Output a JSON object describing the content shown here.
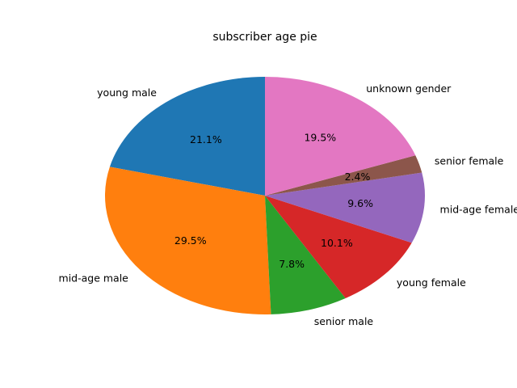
{
  "chart_data": {
    "type": "pie",
    "title": "subscriber age pie",
    "categories": [
      "young male",
      "mid-age male",
      "senior male",
      "young female",
      "mid-age female",
      "senior female",
      "unknown gender"
    ],
    "values": [
      21.1,
      29.5,
      7.8,
      10.1,
      9.6,
      2.4,
      19.5
    ],
    "percent_labels": [
      "21.1%",
      "29.5%",
      "7.8%",
      "10.1%",
      "9.6%",
      "2.4%",
      "19.5%"
    ],
    "colors": [
      "#1f77b4",
      "#ff7f0e",
      "#2ca02c",
      "#d62728",
      "#9467bd",
      "#8c564b",
      "#e377c2"
    ],
    "start_angle_deg": 90,
    "direction": "counterclockwise",
    "legend": "none"
  }
}
